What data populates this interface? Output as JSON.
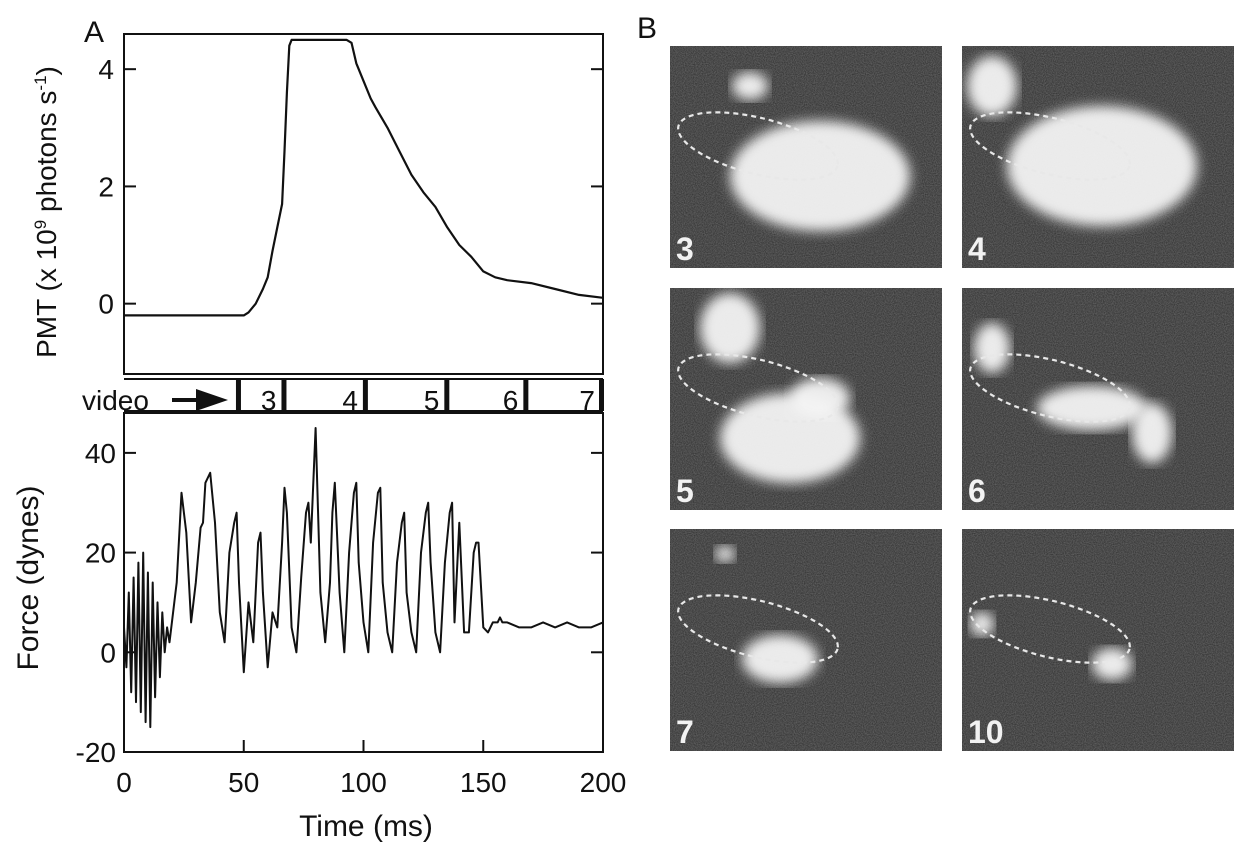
{
  "panel_labels": {
    "a": "A",
    "b": "B"
  },
  "chart_data": [
    {
      "type": "line",
      "panel": "A",
      "ylabel": "PMT (x 10⁹ photons s⁻¹)",
      "ylabel_parts": {
        "pre": "PMT (x 10",
        "sup1": "9",
        "mid": " photons s",
        "sup2": "-1",
        "post": ")"
      },
      "ylim": [
        -1.2,
        4.6
      ],
      "xlim": [
        0,
        200
      ],
      "yticks": [
        0,
        2,
        4
      ],
      "ytick_labels": [
        "0",
        "2",
        "4"
      ],
      "series": [
        {
          "x": [
            0,
            10,
            20,
            30,
            40,
            50,
            52,
            55,
            58,
            60,
            62,
            64,
            66,
            67,
            68,
            69,
            70,
            75,
            80,
            85,
            90,
            93,
            95,
            97,
            100,
            103,
            105,
            110,
            115,
            120,
            125,
            130,
            135,
            140,
            145,
            150,
            155,
            160,
            170,
            180,
            190,
            200
          ],
          "y": [
            -0.2,
            -0.2,
            -0.2,
            -0.2,
            -0.2,
            -0.2,
            -0.15,
            0.0,
            0.25,
            0.45,
            0.9,
            1.3,
            1.7,
            2.6,
            3.6,
            4.4,
            4.5,
            4.5,
            4.5,
            4.5,
            4.5,
            4.5,
            4.45,
            4.1,
            3.8,
            3.5,
            3.35,
            3.0,
            2.6,
            2.2,
            1.9,
            1.65,
            1.3,
            1.0,
            0.8,
            0.55,
            0.45,
            0.4,
            0.35,
            0.25,
            0.15,
            0.1
          ]
        }
      ]
    },
    {
      "type": "table",
      "panel": "A",
      "label": "video",
      "frames": [
        {
          "label": "3",
          "start": 48,
          "end": 67
        },
        {
          "label": "4",
          "start": 67,
          "end": 101
        },
        {
          "label": "5",
          "start": 101,
          "end": 135
        },
        {
          "label": "6",
          "start": 135,
          "end": 168
        },
        {
          "label": "7",
          "start": 168,
          "end": 200
        }
      ]
    },
    {
      "type": "line",
      "panel": "A",
      "xlabel": "Time (ms)",
      "ylabel": "Force (dynes)",
      "xlim": [
        0,
        200
      ],
      "ylim": [
        -20,
        48
      ],
      "xticks": [
        0,
        50,
        100,
        150,
        200
      ],
      "xtick_labels": [
        "0",
        "50",
        "100",
        "150",
        "200"
      ],
      "yticks": [
        -20,
        0,
        20,
        40
      ],
      "ytick_labels": [
        "-20",
        "0",
        "20",
        "40"
      ],
      "series": [
        {
          "x": [
            0,
            1,
            2,
            3,
            4,
            5,
            6,
            7,
            8,
            9,
            10,
            11,
            12,
            13,
            14,
            15,
            16,
            17,
            18,
            19,
            20,
            21,
            22,
            24,
            26,
            28,
            30,
            32,
            33,
            34,
            36,
            38,
            40,
            42,
            44,
            46,
            47,
            48,
            50,
            52,
            54,
            56,
            57,
            58,
            60,
            62,
            64,
            66,
            67,
            68,
            70,
            72,
            74,
            76,
            77,
            78,
            80,
            82,
            84,
            86,
            87,
            88,
            90,
            92,
            94,
            96,
            97,
            98,
            100,
            102,
            104,
            106,
            107,
            108,
            110,
            112,
            114,
            116,
            117,
            118,
            120,
            122,
            124,
            126,
            127,
            128,
            130,
            132,
            134,
            136,
            137,
            138,
            140,
            142,
            144,
            146,
            147,
            148,
            150,
            152,
            154,
            156,
            157,
            158,
            159,
            160,
            165,
            170,
            175,
            180,
            185,
            190,
            195,
            200
          ],
          "y": [
            5,
            -3,
            12,
            -8,
            15,
            -10,
            18,
            -12,
            20,
            -14,
            16,
            -15,
            14,
            -9,
            10,
            -5,
            8,
            0,
            5,
            2,
            6,
            10,
            14,
            32,
            24,
            6,
            14,
            25,
            26,
            34,
            36,
            26,
            8,
            2,
            20,
            26,
            28,
            14,
            -4,
            10,
            2,
            22,
            24,
            12,
            -3,
            8,
            5,
            22,
            33,
            28,
            5,
            0,
            15,
            28,
            30,
            22,
            45,
            12,
            2,
            14,
            28,
            34,
            12,
            0,
            20,
            32,
            34,
            18,
            6,
            0,
            22,
            32,
            33,
            14,
            4,
            0,
            18,
            26,
            28,
            12,
            4,
            0,
            20,
            28,
            30,
            18,
            4,
            0,
            18,
            28,
            30,
            6,
            26,
            4,
            4,
            20,
            22,
            22,
            5,
            4,
            6,
            6,
            7,
            6,
            6,
            6,
            5,
            5,
            6,
            5,
            6,
            5,
            5,
            6
          ]
        }
      ]
    }
  ],
  "images": [
    {
      "label": "3"
    },
    {
      "label": "4"
    },
    {
      "label": "5"
    },
    {
      "label": "6"
    },
    {
      "label": "7"
    },
    {
      "label": "10"
    }
  ],
  "colors": {
    "line": "#111111",
    "frame_bg": "#2a2a2a",
    "dash": "#e8e8e8"
  }
}
